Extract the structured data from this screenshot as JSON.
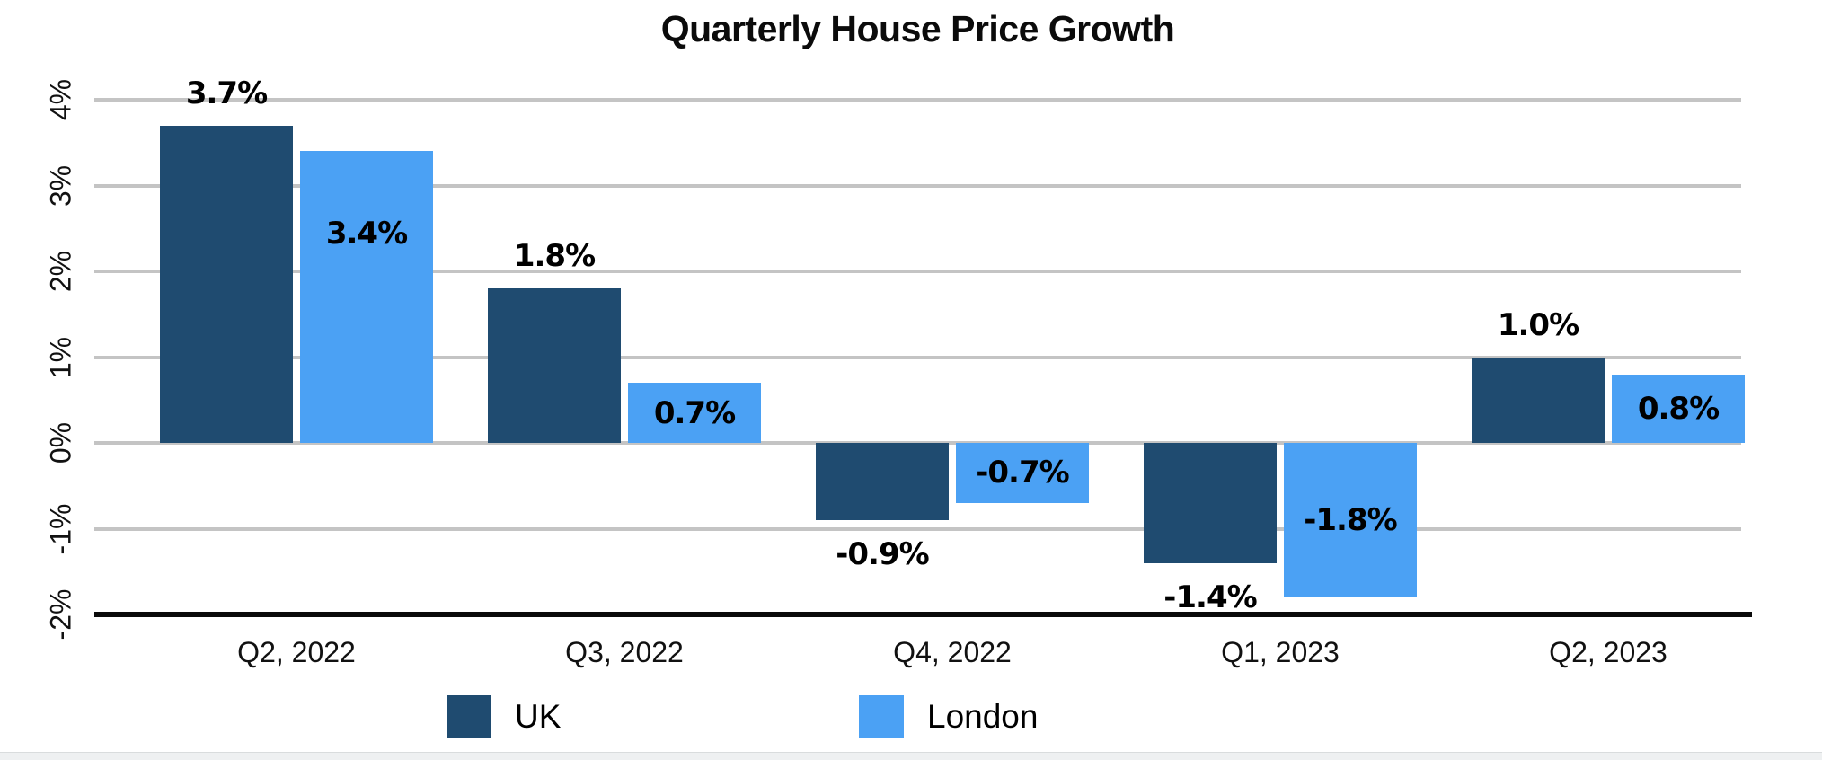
{
  "chart_data": {
    "type": "bar",
    "title": "Quarterly House Price Growth",
    "categories": [
      "Q2, 2022",
      "Q3, 2022",
      "Q4, 2022",
      "Q1, 2023",
      "Q2, 2023"
    ],
    "series": [
      {
        "name": "UK",
        "color": "#1F4B70",
        "values": [
          3.7,
          1.8,
          -0.9,
          -1.4,
          1.0
        ],
        "labels": [
          "3.7%",
          "1.8%",
          "-0.9%",
          "-1.4%",
          "1.0%"
        ],
        "label_placement": "outside"
      },
      {
        "name": "London",
        "color": "#4BA1F4",
        "values": [
          3.4,
          0.7,
          -0.7,
          -1.8,
          0.8
        ],
        "labels": [
          "3.4%",
          "0.7%",
          "-0.7%",
          "-1.8%",
          "0.8%"
        ],
        "label_placement": "inside"
      }
    ],
    "yticks": [
      {
        "label": "4%",
        "value": 4
      },
      {
        "label": "3%",
        "value": 3
      },
      {
        "label": "2%",
        "value": 2
      },
      {
        "label": "1%",
        "value": 1
      },
      {
        "label": "0%",
        "value": 0
      },
      {
        "label": "-1%",
        "value": -1
      },
      {
        "label": "-2%",
        "value": -2
      }
    ],
    "ylim": [
      -2,
      4
    ],
    "xlabel": "",
    "ylabel": "",
    "grid": true,
    "legend_position": "bottom",
    "value_label_color": "#000000",
    "gridline_color": "#c4c4c4",
    "axis_line_color": "#0a0a0a",
    "background": "#ffffff",
    "bottom_strip_color": "#eef0f1"
  }
}
